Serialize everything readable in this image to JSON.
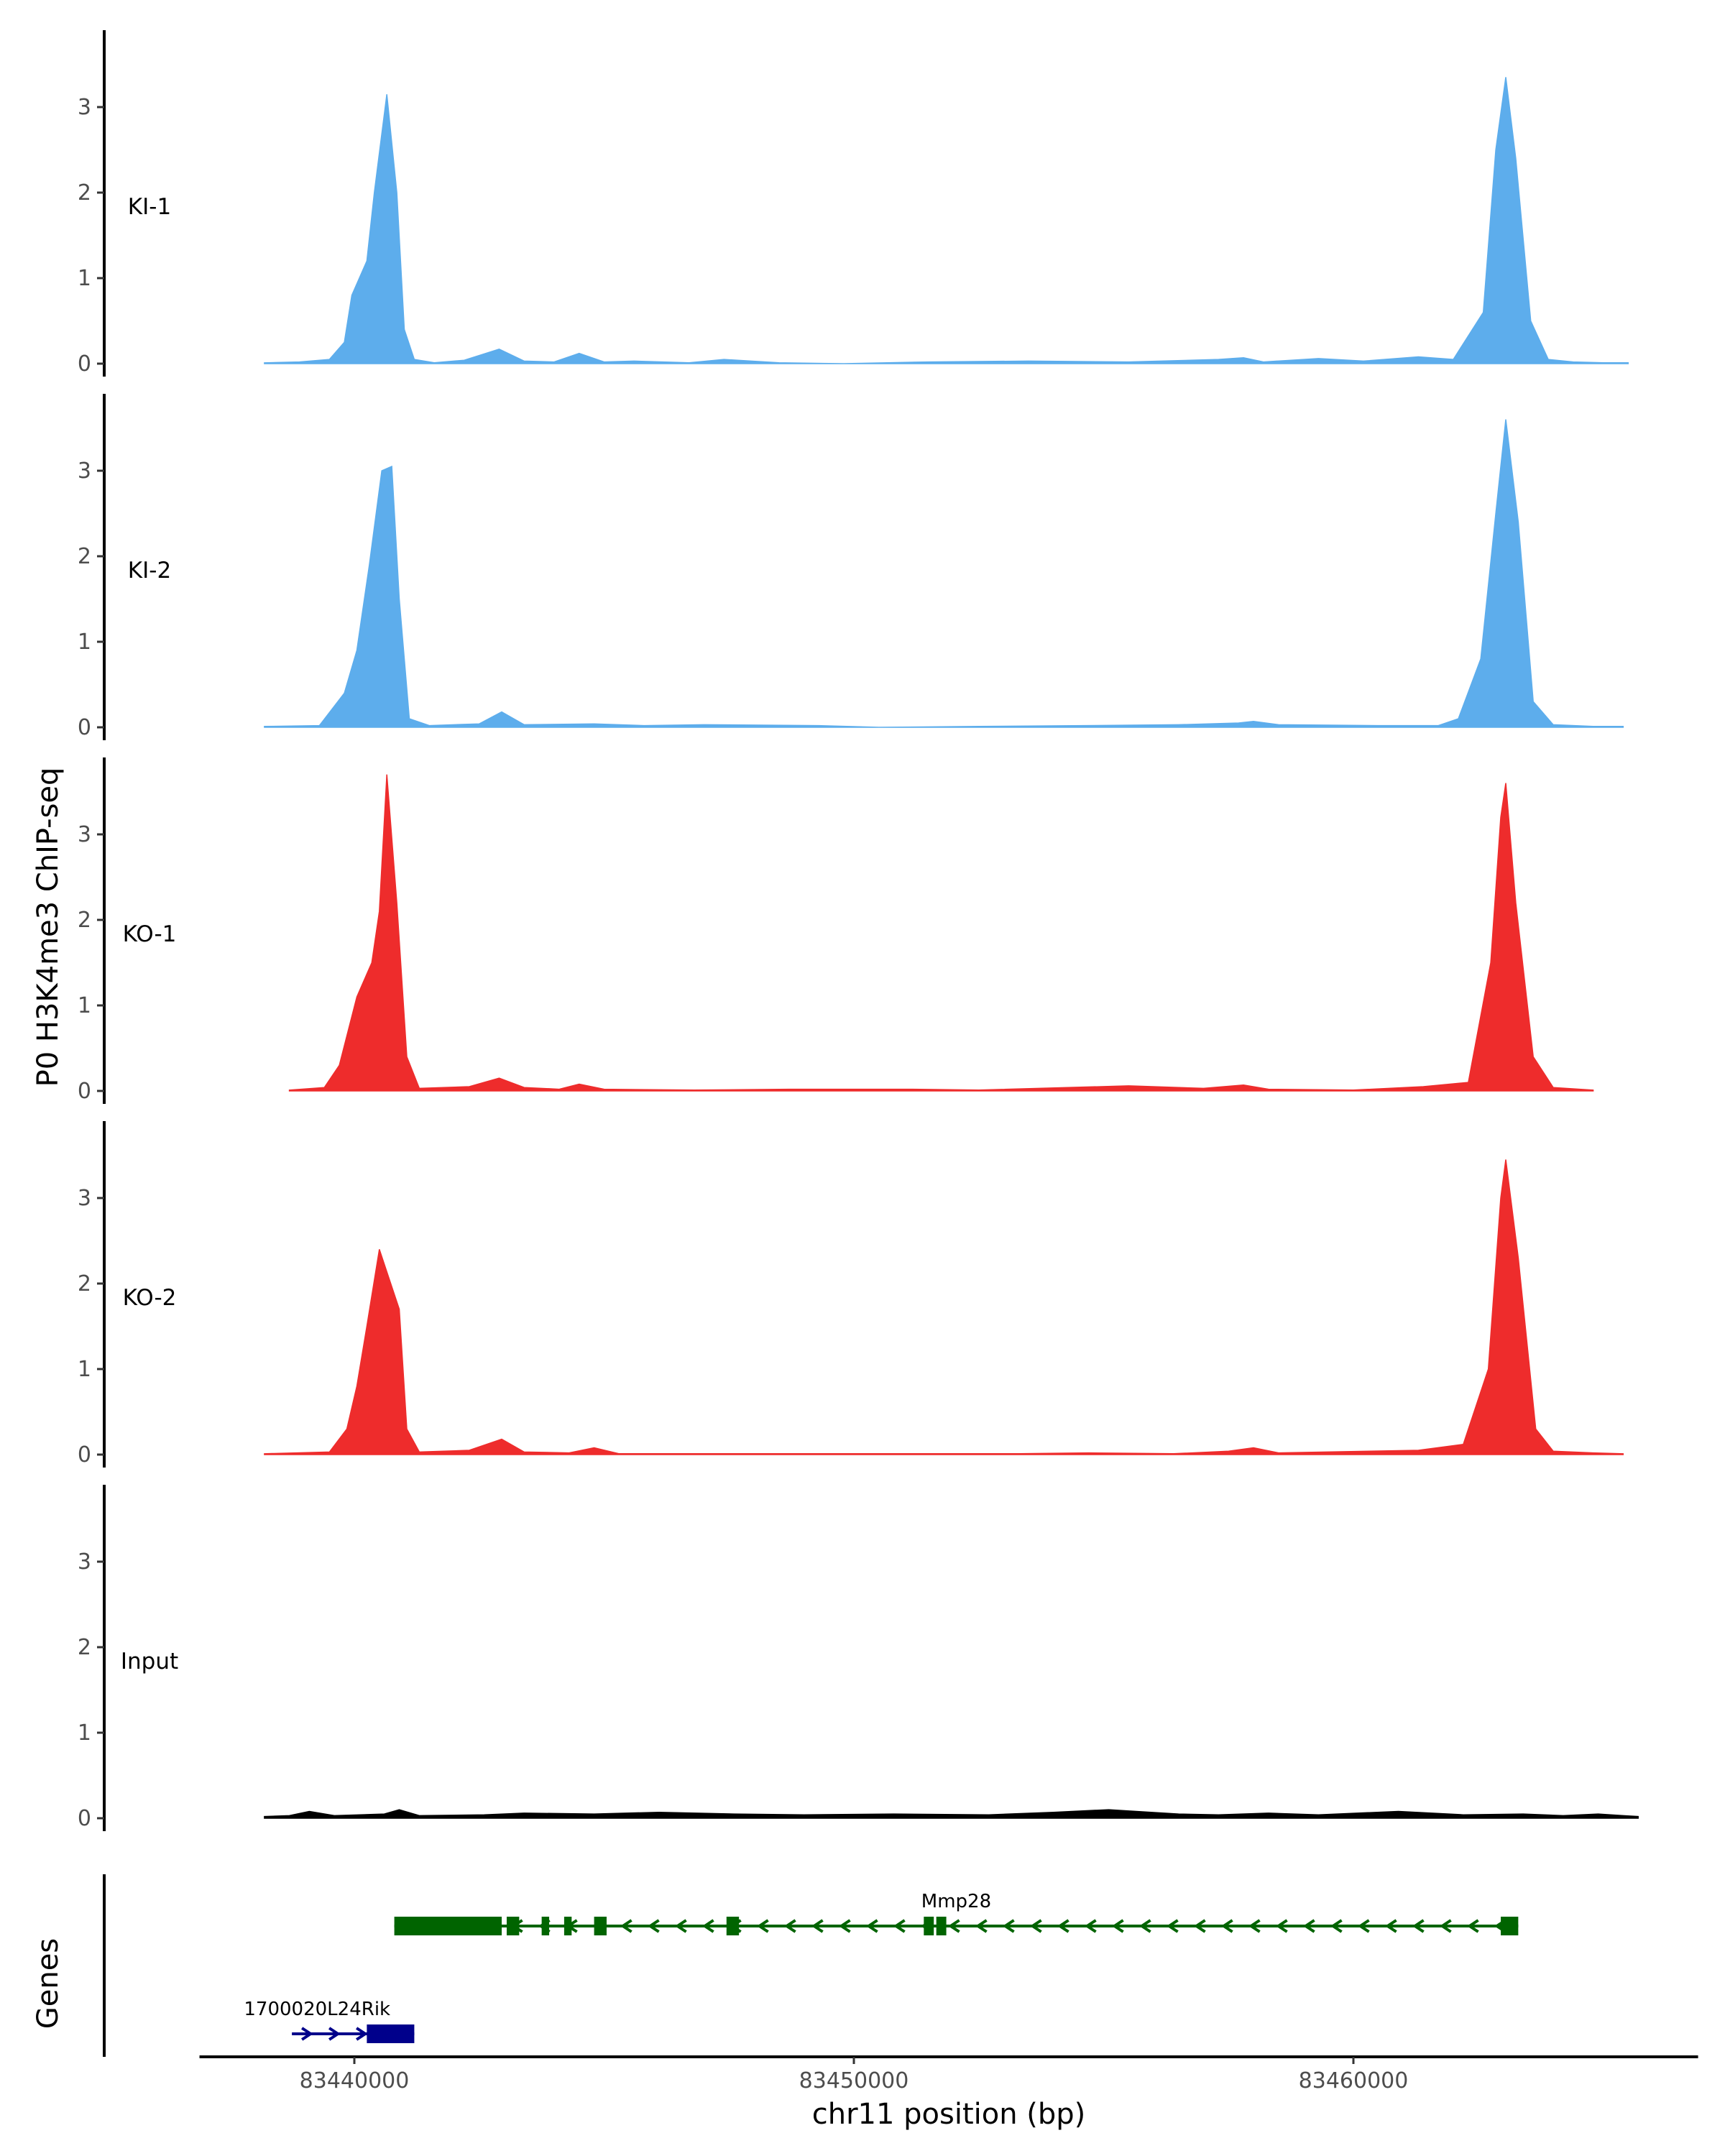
{
  "chart_data": {
    "type": "area",
    "title": "",
    "ylabel": "P0 H3K4me3 ChIP-seq",
    "xlabel": "chr11 position (bp)",
    "xlim": [
      83436900,
      83466900
    ],
    "ylim": [
      0,
      3.9
    ],
    "yticks": [
      "0",
      "1",
      "2",
      "3"
    ],
    "xticks": [
      {
        "value": 83440000,
        "label": "83440000"
      },
      {
        "value": 83450000,
        "label": "83450000"
      },
      {
        "value": 83460000,
        "label": "83460000"
      }
    ],
    "tracks": [
      {
        "name": "KI-1",
        "color": "#5DADEC",
        "points": [
          [
            83438200,
            0.01
          ],
          [
            83438900,
            0.02
          ],
          [
            83439500,
            0.05
          ],
          [
            83439800,
            0.25
          ],
          [
            83439950,
            0.8
          ],
          [
            83440250,
            1.2
          ],
          [
            83440400,
            2.0
          ],
          [
            83440650,
            3.15
          ],
          [
            83440850,
            2.0
          ],
          [
            83441000,
            0.4
          ],
          [
            83441200,
            0.05
          ],
          [
            83441600,
            0.01
          ],
          [
            83442200,
            0.04
          ],
          [
            83442900,
            0.17
          ],
          [
            83443400,
            0.03
          ],
          [
            83444000,
            0.02
          ],
          [
            83444500,
            0.12
          ],
          [
            83445000,
            0.02
          ],
          [
            83445600,
            0.03
          ],
          [
            83446700,
            0.01
          ],
          [
            83447400,
            0.05
          ],
          [
            83448500,
            0.01
          ],
          [
            83449800,
            0.0
          ],
          [
            83451500,
            0.02
          ],
          [
            83453500,
            0.03
          ],
          [
            83455500,
            0.02
          ],
          [
            83457300,
            0.05
          ],
          [
            83457800,
            0.07
          ],
          [
            83458200,
            0.02
          ],
          [
            83459300,
            0.06
          ],
          [
            83460200,
            0.03
          ],
          [
            83461300,
            0.08
          ],
          [
            83462000,
            0.05
          ],
          [
            83462600,
            0.6
          ],
          [
            83462850,
            2.5
          ],
          [
            83463050,
            3.35
          ],
          [
            83463250,
            2.4
          ],
          [
            83463550,
            0.5
          ],
          [
            83463900,
            0.05
          ],
          [
            83464400,
            0.02
          ],
          [
            83465000,
            0.01
          ],
          [
            83465500,
            0.01
          ]
        ]
      },
      {
        "name": "KI-2",
        "color": "#5DADEC",
        "points": [
          [
            83438200,
            0.01
          ],
          [
            83439300,
            0.02
          ],
          [
            83439800,
            0.4
          ],
          [
            83440050,
            0.9
          ],
          [
            83440300,
            1.9
          ],
          [
            83440550,
            3.0
          ],
          [
            83440750,
            3.05
          ],
          [
            83440900,
            1.5
          ],
          [
            83441100,
            0.1
          ],
          [
            83441500,
            0.02
          ],
          [
            83442500,
            0.04
          ],
          [
            83442950,
            0.18
          ],
          [
            83443400,
            0.03
          ],
          [
            83444800,
            0.04
          ],
          [
            83445800,
            0.02
          ],
          [
            83447000,
            0.03
          ],
          [
            83449300,
            0.02
          ],
          [
            83450500,
            0.0
          ],
          [
            83452500,
            0.01
          ],
          [
            83454600,
            0.02
          ],
          [
            83456500,
            0.03
          ],
          [
            83457700,
            0.05
          ],
          [
            83458000,
            0.07
          ],
          [
            83458500,
            0.03
          ],
          [
            83460500,
            0.02
          ],
          [
            83461700,
            0.02
          ],
          [
            83462100,
            0.1
          ],
          [
            83462550,
            0.8
          ],
          [
            83462850,
            2.5
          ],
          [
            83463050,
            3.6
          ],
          [
            83463300,
            2.4
          ],
          [
            83463600,
            0.3
          ],
          [
            83464000,
            0.03
          ],
          [
            83464800,
            0.01
          ],
          [
            83465400,
            0.01
          ]
        ]
      },
      {
        "name": "KO-1",
        "color": "#EE2C2C",
        "points": [
          [
            83438700,
            0.01
          ],
          [
            83439400,
            0.04
          ],
          [
            83439700,
            0.3
          ],
          [
            83440050,
            1.1
          ],
          [
            83440350,
            1.5
          ],
          [
            83440500,
            2.1
          ],
          [
            83440650,
            3.7
          ],
          [
            83440850,
            2.2
          ],
          [
            83441050,
            0.4
          ],
          [
            83441300,
            0.03
          ],
          [
            83442300,
            0.05
          ],
          [
            83442900,
            0.15
          ],
          [
            83443400,
            0.04
          ],
          [
            83444100,
            0.02
          ],
          [
            83444500,
            0.08
          ],
          [
            83445000,
            0.02
          ],
          [
            83446800,
            0.01
          ],
          [
            83448700,
            0.02
          ],
          [
            83451100,
            0.02
          ],
          [
            83452500,
            0.01
          ],
          [
            83455500,
            0.06
          ],
          [
            83457000,
            0.03
          ],
          [
            83457800,
            0.07
          ],
          [
            83458300,
            0.02
          ],
          [
            83460000,
            0.01
          ],
          [
            83461400,
            0.05
          ],
          [
            83462300,
            0.1
          ],
          [
            83462750,
            1.5
          ],
          [
            83462950,
            3.2
          ],
          [
            83463050,
            3.6
          ],
          [
            83463250,
            2.2
          ],
          [
            83463600,
            0.4
          ],
          [
            83464000,
            0.04
          ],
          [
            83464800,
            0.01
          ]
        ]
      },
      {
        "name": "KO-2",
        "color": "#EE2C2C",
        "points": [
          [
            83438200,
            0.01
          ],
          [
            83439500,
            0.03
          ],
          [
            83439850,
            0.3
          ],
          [
            83440050,
            0.8
          ],
          [
            83440250,
            1.5
          ],
          [
            83440500,
            2.4
          ],
          [
            83440900,
            1.7
          ],
          [
            83441050,
            0.3
          ],
          [
            83441300,
            0.03
          ],
          [
            83442300,
            0.05
          ],
          [
            83442950,
            0.18
          ],
          [
            83443400,
            0.03
          ],
          [
            83444300,
            0.02
          ],
          [
            83444800,
            0.08
          ],
          [
            83445300,
            0.01
          ],
          [
            83447600,
            0.01
          ],
          [
            83449300,
            0.01
          ],
          [
            83450800,
            0.01
          ],
          [
            83453300,
            0.01
          ],
          [
            83454700,
            0.02
          ],
          [
            83456400,
            0.01
          ],
          [
            83457500,
            0.04
          ],
          [
            83458000,
            0.08
          ],
          [
            83458500,
            0.02
          ],
          [
            83461300,
            0.05
          ],
          [
            83462200,
            0.12
          ],
          [
            83462700,
            1.0
          ],
          [
            83462950,
            3.0
          ],
          [
            83463050,
            3.45
          ],
          [
            83463300,
            2.3
          ],
          [
            83463650,
            0.3
          ],
          [
            83464000,
            0.04
          ],
          [
            83464800,
            0.02
          ],
          [
            83465400,
            0.01
          ]
        ]
      },
      {
        "name": "Input",
        "color": "#000000",
        "points": [
          [
            83438200,
            0.02
          ],
          [
            83438700,
            0.03
          ],
          [
            83439100,
            0.08
          ],
          [
            83439600,
            0.03
          ],
          [
            83440600,
            0.05
          ],
          [
            83440900,
            0.1
          ],
          [
            83441300,
            0.03
          ],
          [
            83442600,
            0.04
          ],
          [
            83443400,
            0.06
          ],
          [
            83444800,
            0.05
          ],
          [
            83446100,
            0.07
          ],
          [
            83447600,
            0.05
          ],
          [
            83449000,
            0.04
          ],
          [
            83450800,
            0.05
          ],
          [
            83452700,
            0.04
          ],
          [
            83454000,
            0.07
          ],
          [
            83455100,
            0.1
          ],
          [
            83456500,
            0.05
          ],
          [
            83457300,
            0.04
          ],
          [
            83458300,
            0.06
          ],
          [
            83459300,
            0.04
          ],
          [
            83460900,
            0.08
          ],
          [
            83462200,
            0.04
          ],
          [
            83463400,
            0.05
          ],
          [
            83464200,
            0.03
          ],
          [
            83464900,
            0.05
          ],
          [
            83465400,
            0.03
          ],
          [
            83465700,
            0.02
          ]
        ]
      }
    ],
    "genes_track": {
      "label": "Genes",
      "genes": [
        {
          "name": "Mmp28",
          "color": "#006400",
          "strand": "-",
          "start": 83440800,
          "end": 83463300,
          "exons": [
            [
              83440800,
              83442950
            ],
            [
              83443050,
              83443300
            ],
            [
              83443750,
              83443900
            ],
            [
              83444200,
              83444350
            ],
            [
              83444800,
              83445050
            ],
            [
              83447450,
              83447700
            ],
            [
              83451400,
              83451600
            ],
            [
              83451650,
              83451850
            ],
            [
              83462950,
              83463300
            ]
          ]
        },
        {
          "name": "1700020L24Rik",
          "color": "#00008B",
          "strand": "+",
          "start": 83438750,
          "end": 83441200,
          "exons": [
            [
              83440250,
              83441200
            ]
          ]
        }
      ]
    }
  }
}
